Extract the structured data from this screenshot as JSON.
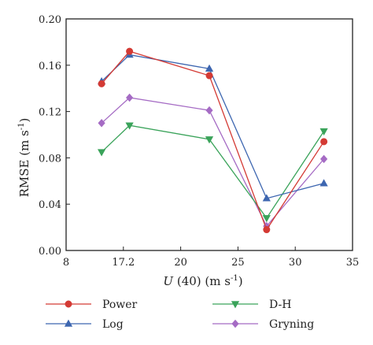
{
  "chart_data": {
    "type": "line",
    "xlabel": {
      "var": "U",
      "rest": " (40) (m s",
      "sup": "-1",
      "close": ")"
    },
    "ylabel": {
      "text": "RMSE (m s",
      "sup": "-1",
      "close": ")"
    },
    "x_ticks": [
      "8",
      "17.2",
      "20",
      "25",
      "30",
      "35"
    ],
    "y_ticks": [
      "0.00",
      "0.04",
      "0.08",
      "0.12",
      "0.16",
      "0.20"
    ],
    "ylim": [
      0,
      0.2
    ],
    "grid": false,
    "legend_position": "bottom",
    "categories": [
      "13.7",
      "17.5",
      "22.5",
      "27.5",
      "32.5"
    ],
    "series": [
      {
        "name": "Power",
        "color": "#d43a34",
        "marker": "circle",
        "values": [
          0.144,
          0.172,
          0.151,
          0.018,
          0.094
        ]
      },
      {
        "name": "Log",
        "color": "#3d66b0",
        "marker": "triangle-up",
        "values": [
          0.146,
          0.169,
          0.157,
          0.045,
          0.058
        ]
      },
      {
        "name": "D-H",
        "color": "#3aa35a",
        "marker": "triangle-down",
        "values": [
          0.085,
          0.108,
          0.096,
          0.028,
          0.103
        ]
      },
      {
        "name": "Gryning",
        "color": "#a56bc4",
        "marker": "diamond",
        "values": [
          0.11,
          0.132,
          0.121,
          0.021,
          0.079
        ]
      }
    ]
  }
}
